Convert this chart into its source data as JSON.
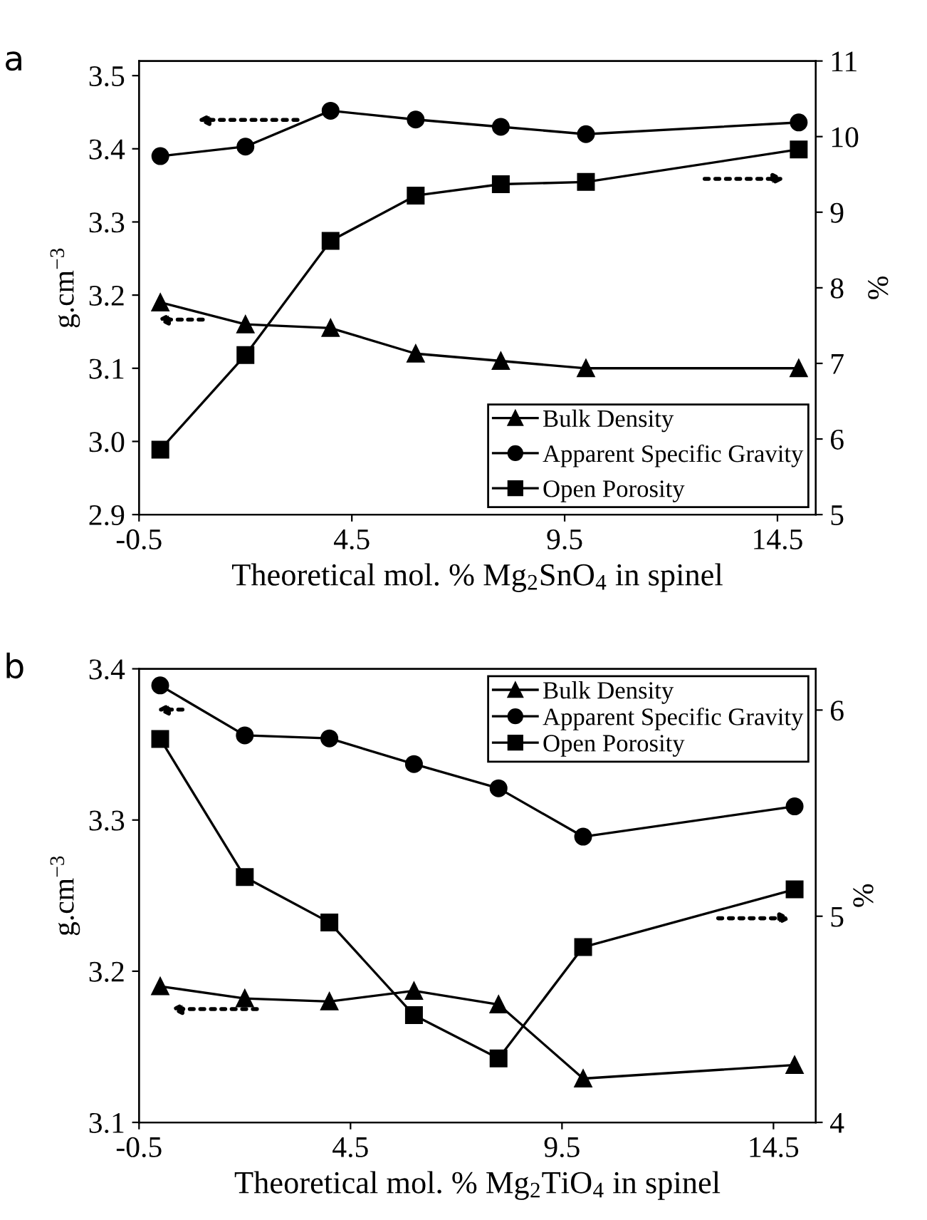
{
  "chart_data": [
    {
      "type": "line",
      "title": "a",
      "xlabel": "Theoretical mol. % Mg$_{2}$SnO$_{4}$ in spinel",
      "ylabel": "g.cm$^{−3}$",
      "y2label": "%",
      "x": [
        0,
        2,
        4,
        6,
        8,
        10,
        15
      ],
      "xlim": [
        -0.5,
        15.4
      ],
      "xticks": [
        -0.5,
        4.5,
        9.5,
        14.5
      ],
      "ylim": [
        2.9,
        3.52
      ],
      "yticks": [
        2.9,
        {
          "value": 3.0,
          "label": "3.0"
        },
        3.1,
        3.2,
        3.3,
        3.4,
        3.5
      ],
      "y2lim": [
        5,
        11
      ],
      "y2ticks": [
        5,
        6,
        7,
        8,
        9,
        10,
        11
      ],
      "legend": "bottom right",
      "grid": false,
      "series": [
        {
          "name": "Bulk Density",
          "color": "#000000",
          "marker": "triangle",
          "values": [
            3.19,
            3.16,
            3.155,
            3.12,
            3.11,
            3.1,
            3.1
          ]
        },
        {
          "name": "Apparent Specific Gravity",
          "color": "#000000",
          "marker": "circle",
          "values": [
            3.39,
            3.403,
            3.452,
            3.44,
            3.43,
            3.42,
            3.436
          ]
        },
        {
          "name": "Open Porosity",
          "color": "#000000",
          "marker": "square",
          "axis": "y2",
          "values": [
            5.86,
            7.11,
            8.62,
            9.22,
            9.37,
            9.4,
            9.83
          ]
        }
      ]
    },
    {
      "type": "line",
      "title": "b",
      "xlabel": "Theoretical mol. % Mg$_{2}$TiO$_{4}$ in spinel",
      "ylabel": "g.cm$^{−3}$",
      "y2label": "%",
      "x": [
        0,
        2,
        4,
        6,
        8,
        10,
        15
      ],
      "xlim": [
        -0.5,
        15.5
      ],
      "xticks": [
        -0.5,
        4.5,
        9.5,
        14.5
      ],
      "ylim": [
        3.1,
        3.4
      ],
      "yticks": [
        3.1,
        3.2,
        3.3,
        3.4
      ],
      "y2lim": [
        4,
        6.2
      ],
      "y2ticks": [
        4,
        5,
        6
      ],
      "legend": "top right",
      "grid": false,
      "series": [
        {
          "name": "Bulk Density",
          "color": "#000000",
          "marker": "triangle",
          "values": [
            3.19,
            3.182,
            3.18,
            3.187,
            3.178,
            3.129,
            3.138
          ]
        },
        {
          "name": "Apparent Specific Gravity",
          "color": "#000000",
          "marker": "circle",
          "values": [
            3.389,
            3.356,
            3.354,
            3.337,
            3.321,
            3.289,
            3.309
          ]
        },
        {
          "name": "Open Porosity",
          "color": "#000000",
          "marker": "square",
          "axis": "y2",
          "values": [
            5.86,
            5.19,
            4.97,
            4.52,
            4.31,
            4.85,
            5.13
          ]
        }
      ]
    }
  ]
}
